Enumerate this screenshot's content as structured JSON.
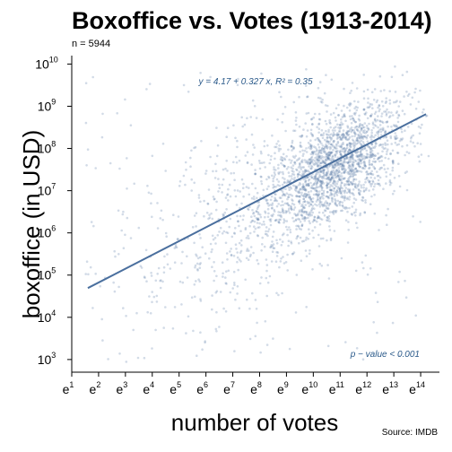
{
  "chart_data": {
    "type": "scatter",
    "title": "Boxoffice vs. Votes (1913-2014)",
    "subtitle": "n = 5944",
    "caption": "Source: IMDB",
    "xlabel": "number of votes",
    "ylabel": "boxoffice (in USD)",
    "x_scale": "log_e",
    "y_scale": "log10",
    "xlim": [
      1,
      14.7
    ],
    "ylim": [
      2.7,
      10.2
    ],
    "x_ticks": [
      1,
      2,
      3,
      4,
      5,
      6,
      7,
      8,
      9,
      10,
      11,
      12,
      13,
      14
    ],
    "y_ticks": [
      3,
      4,
      5,
      6,
      7,
      8,
      9,
      10
    ],
    "x_tick_base": "e",
    "y_tick_base": "10",
    "n": 5944,
    "point_color": "#4a6f9e",
    "point_opacity": 0.25,
    "regression": {
      "intercept": 4.17,
      "slope": 0.327,
      "r_squared": 0.35,
      "x_range": [
        1.6,
        14.2
      ],
      "color": "#4a6f9e"
    },
    "annotations": {
      "equation": "y = 4.17 + 0.327 x,  R² = 0.35",
      "p_value": "p − value < 0.001"
    },
    "density_note": "points concentrated around x 9–13, y 7–9; sparse scatter elsewhere",
    "grid": false,
    "legend": "none"
  }
}
